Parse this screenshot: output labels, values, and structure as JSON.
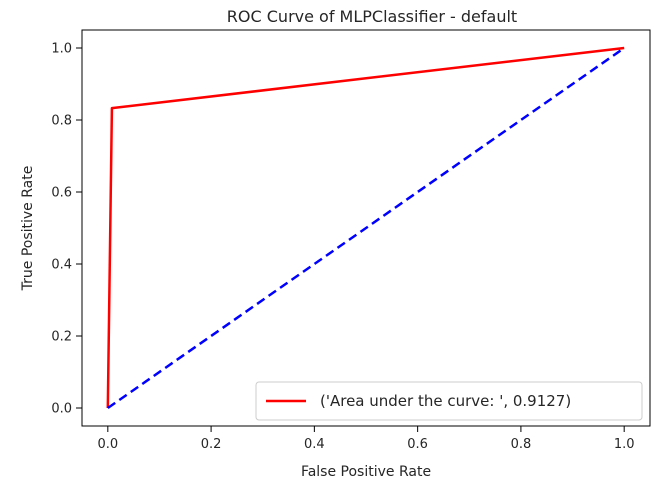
{
  "chart_data": {
    "type": "line",
    "title": "ROC Curve of MLPClassifier - default",
    "xlabel": "False Positive Rate",
    "ylabel": "True Positive Rate",
    "xlim": [
      -0.05,
      1.05
    ],
    "ylim": [
      -0.05,
      1.05
    ],
    "xticks": [
      "0.0",
      "0.2",
      "0.4",
      "0.6",
      "0.8",
      "1.0"
    ],
    "yticks": [
      "0.0",
      "0.2",
      "0.4",
      "0.6",
      "0.8",
      "1.0"
    ],
    "grid": false,
    "legend_position": "lower right",
    "series": [
      {
        "name": "('Area under the curve: ', 0.9127)",
        "style": "solid",
        "color": "#ff0000",
        "x": [
          0.0,
          0.008,
          1.0
        ],
        "y": [
          0.0,
          0.833,
          1.0
        ]
      },
      {
        "style": "dashed",
        "color": "#0000ff",
        "x": [
          0.0,
          1.0
        ],
        "y": [
          0.0,
          1.0
        ]
      }
    ]
  }
}
